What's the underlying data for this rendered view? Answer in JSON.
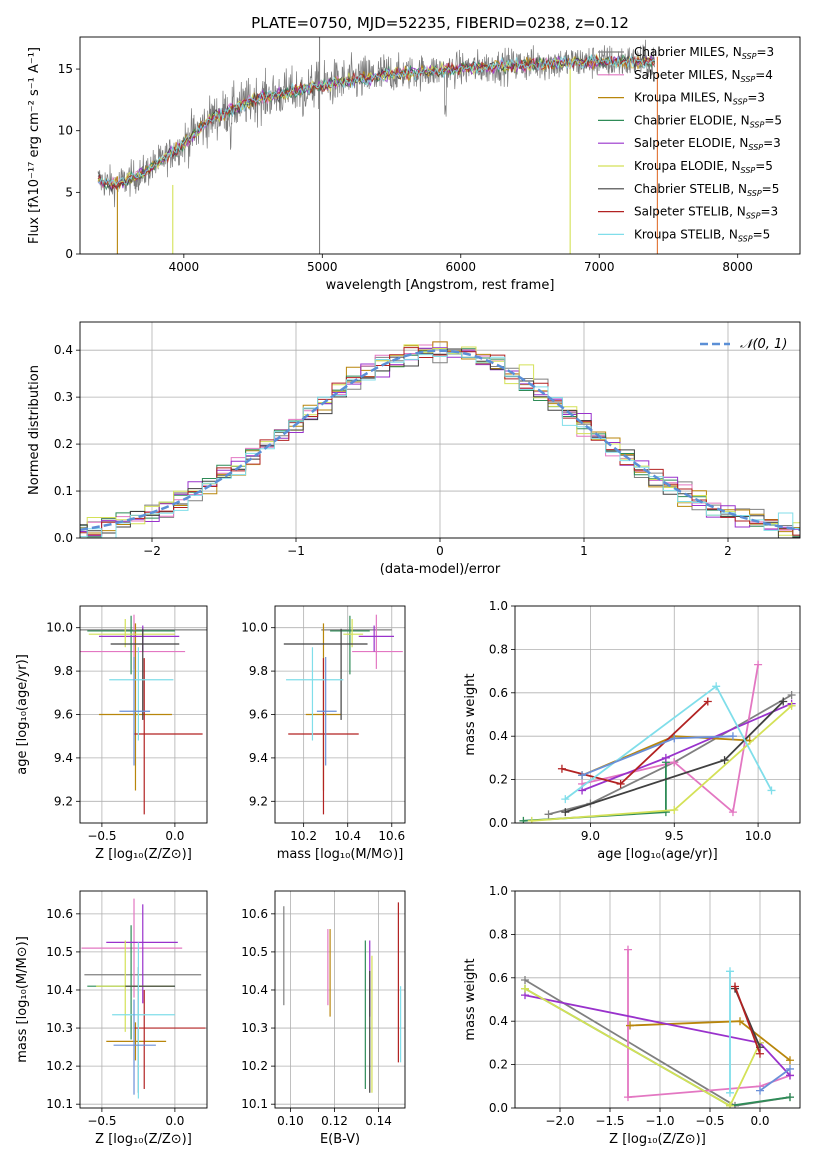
{
  "figure_title": "PLATE=0750, MJD=52235, FIBERID=0238, z=0.12",
  "models": [
    {
      "label": "Chabrier MILES, N",
      "sub": "SSP",
      "tail": "=3",
      "color": "#808080"
    },
    {
      "label": "Salpeter MILES, N",
      "sub": "SSP",
      "tail": "=4",
      "color": "#e377c2"
    },
    {
      "label": "Kroupa MILES, N",
      "sub": "SSP",
      "tail": "=3",
      "color": "#b8860b"
    },
    {
      "label": "Chabrier ELODIE, N",
      "sub": "SSP",
      "tail": "=5",
      "color": "#2e8b57"
    },
    {
      "label": "Salpeter ELODIE, N",
      "sub": "SSP",
      "tail": "=3",
      "color": "#9932cc"
    },
    {
      "label": "Kroupa ELODIE, N",
      "sub": "SSP",
      "tail": "=5",
      "color": "#d4e157"
    },
    {
      "label": "Chabrier STELIB, N",
      "sub": "SSP",
      "tail": "=5",
      "color": "#404040"
    },
    {
      "label": "Salpeter STELIB, N",
      "sub": "SSP",
      "tail": "=3",
      "color": "#b22222"
    },
    {
      "label": "Kroupa STELIB, N",
      "sub": "SSP",
      "tail": "=5",
      "color": "#80deea"
    }
  ],
  "chart_data": [
    {
      "id": "spectrum",
      "type": "line",
      "xlabel": "wavelength [Angstrom, rest frame]",
      "ylabel": "Flux [fλ10⁻¹⁷ erg cm⁻² s⁻¹ A⁻¹]",
      "xlim": [
        3250,
        8450
      ],
      "ylim": [
        0,
        17.6
      ],
      "xticks": [
        4000,
        5000,
        6000,
        7000,
        8000
      ],
      "yticks": [
        0,
        5,
        10,
        15
      ],
      "grid": false,
      "legend": "top-right",
      "continuum": {
        "x": [
          3380,
          3500,
          3700,
          3950,
          4200,
          4500,
          5000,
          5500,
          6000,
          6500,
          7000,
          7400
        ],
        "y": [
          6.0,
          5.6,
          6.5,
          8.5,
          11.0,
          12.5,
          13.7,
          14.6,
          15.0,
          15.4,
          15.6,
          15.6
        ]
      }
    },
    {
      "id": "residuals",
      "type": "step",
      "xlabel": "(data-model)/error",
      "ylabel": "Normed distribution",
      "xlim": [
        -2.5,
        2.5
      ],
      "ylim": [
        0,
        0.46
      ],
      "xticks": [
        -2,
        -1,
        0,
        1,
        2
      ],
      "yticks": [
        0.0,
        0.1,
        0.2,
        0.3,
        0.4
      ],
      "grid": true,
      "legend": "top-right",
      "reference_label": "𝒩(0, 1)"
    },
    {
      "id": "age_Z",
      "type": "errorbar",
      "xlabel": "Z [log₁₀(Z/Z⊙)]",
      "ylabel": "age  [log₁₀(age/yr)]",
      "xlim": [
        -0.65,
        0.22
      ],
      "ylim": [
        9.1,
        10.1
      ],
      "xticks": [
        -0.5,
        0.0
      ],
      "yticks": [
        9.2,
        9.4,
        9.6,
        9.8,
        10.0
      ],
      "grid": true,
      "points": [
        {
          "x": -0.22,
          "xerr": [
            0.45,
            0.45
          ],
          "y": 9.99,
          "yerr": [
            0.0,
            0.0
          ]
        },
        {
          "x": -0.28,
          "xerr": [
            0.38,
            0.35
          ],
          "y": 9.89,
          "yerr": [
            0.08,
            0.17
          ]
        },
        {
          "x": -0.27,
          "xerr": [
            0.25,
            0.25
          ],
          "y": 9.6,
          "yerr": [
            0.35,
            0.42
          ]
        },
        {
          "x": -0.3,
          "xerr": [
            0.3,
            0.3
          ],
          "y": 9.985,
          "yerr": [
            0.2,
            0.07
          ]
        },
        {
          "x": -0.22,
          "xerr": [
            0.3,
            0.25
          ],
          "y": 9.96,
          "yerr": [
            0.07,
            0.05
          ]
        },
        {
          "x": -0.34,
          "xerr": [
            0.25,
            0.34
          ],
          "y": 9.97,
          "yerr": [
            0.06,
            0.07
          ]
        },
        {
          "x": -0.22,
          "xerr": [
            0.22,
            0.25
          ],
          "y": 9.925,
          "yerr": [
            0.35,
            0.07
          ]
        },
        {
          "x": -0.21,
          "xerr": [
            0.07,
            0.4
          ],
          "y": 9.51,
          "yerr": [
            0.37,
            0.35
          ]
        },
        {
          "x": -0.25,
          "xerr": [
            0.2,
            0.24
          ],
          "y": 9.76,
          "yerr": [
            0.28,
            0.15
          ]
        },
        {
          "x": -0.28,
          "xerr": [
            0.1,
            0.11
          ],
          "y": 9.615,
          "yerr": [
            0.25,
            0.25
          ]
        }
      ]
    },
    {
      "id": "age_mass",
      "type": "errorbar",
      "xlabel": "mass [log₁₀(M/M⊙)]",
      "ylabel": "",
      "xlim": [
        10.07,
        10.66
      ],
      "ylim": [
        9.1,
        10.1
      ],
      "xticks": [
        10.2,
        10.4,
        10.6
      ],
      "yticks": [
        9.2,
        9.4,
        9.6,
        9.8,
        10.0
      ],
      "grid": true,
      "points": [
        {
          "x": 10.44,
          "xerr": [
            0.16,
            0.16
          ],
          "y": 9.99,
          "yerr": [
            0.0,
            0.0
          ]
        },
        {
          "x": 10.53,
          "xerr": [
            0.11,
            0.12
          ],
          "y": 9.89,
          "yerr": [
            0.08,
            0.17
          ]
        },
        {
          "x": 10.29,
          "xerr": [
            0.08,
            0.08
          ],
          "y": 9.6,
          "yerr": [
            0.35,
            0.42
          ]
        },
        {
          "x": 10.41,
          "xerr": [
            0.09,
            0.09
          ],
          "y": 9.985,
          "yerr": [
            0.2,
            0.07
          ]
        },
        {
          "x": 10.52,
          "xerr": [
            0.07,
            0.09
          ],
          "y": 9.96,
          "yerr": [
            0.07,
            0.05
          ]
        },
        {
          "x": 10.42,
          "xerr": [
            0.04,
            0.05
          ],
          "y": 9.97,
          "yerr": [
            0.06,
            0.07
          ]
        },
        {
          "x": 10.37,
          "xerr": [
            0.26,
            0.12
          ],
          "y": 9.925,
          "yerr": [
            0.35,
            0.07
          ]
        },
        {
          "x": 10.29,
          "xerr": [
            0.16,
            0.16
          ],
          "y": 9.51,
          "yerr": [
            0.37,
            0.35
          ]
        },
        {
          "x": 10.24,
          "xerr": [
            0.12,
            0.14
          ],
          "y": 9.76,
          "yerr": [
            0.28,
            0.15
          ]
        },
        {
          "x": 10.3,
          "xerr": [
            0.04,
            0.05
          ],
          "y": 9.615,
          "yerr": [
            0.25,
            0.25
          ]
        }
      ]
    },
    {
      "id": "weight_age",
      "type": "line",
      "xlabel": "age  [log₁₀(age/yr)]",
      "ylabel": "mass weight",
      "xlim": [
        8.55,
        10.25
      ],
      "ylim": [
        0,
        1.0
      ],
      "xticks": [
        9.0,
        9.5,
        10.0
      ],
      "yticks": [
        0.0,
        0.2,
        0.4,
        0.6,
        0.8,
        1.0
      ],
      "grid": true,
      "series": [
        {
          "x": [
            8.75,
            9.0,
            9.5,
            10.2
          ],
          "y": [
            0.04,
            0.09,
            0.28,
            0.59
          ]
        },
        {
          "x": [
            8.95,
            9.5,
            9.85,
            10.0
          ],
          "y": [
            0.18,
            0.28,
            0.05,
            0.73
          ]
        },
        {
          "x": [
            8.95,
            9.5,
            9.95
          ],
          "y": [
            0.22,
            0.4,
            0.38
          ]
        },
        {
          "x": [
            8.6,
            9.45,
            9.45
          ],
          "y": [
            0.01,
            0.05,
            0.28
          ]
        },
        {
          "x": [
            8.95,
            9.45,
            10.2
          ],
          "y": [
            0.15,
            0.3,
            0.55
          ]
        },
        {
          "x": [
            8.65,
            9.5,
            10.2
          ],
          "y": [
            0.01,
            0.06,
            0.54
          ]
        },
        {
          "x": [
            8.85,
            9.8,
            10.15
          ],
          "y": [
            0.05,
            0.29,
            0.56
          ]
        },
        {
          "x": [
            8.83,
            9.18,
            9.7
          ],
          "y": [
            0.25,
            0.18,
            0.56
          ]
        },
        {
          "x": [
            8.85,
            9.75,
            10.08
          ],
          "y": [
            0.11,
            0.63,
            0.15
          ]
        },
        {
          "x": [
            8.95,
            9.5,
            9.85
          ],
          "y": [
            0.22,
            0.39,
            0.4
          ]
        }
      ]
    },
    {
      "id": "mass_Z",
      "type": "errorbar",
      "xlabel": "Z [log₁₀(Z/Z⊙)]",
      "ylabel": "mass [log₁₀(M/M⊙)]",
      "xlim": [
        -0.65,
        0.22
      ],
      "ylim": [
        10.09,
        10.66
      ],
      "xticks": [
        -0.5,
        0.0
      ],
      "yticks": [
        10.1,
        10.2,
        10.3,
        10.4,
        10.5,
        10.6
      ],
      "grid": true,
      "points": [
        {
          "x": -0.22,
          "xerr": [
            0.4,
            0.4
          ],
          "y": 10.44,
          "yerr": [
            0.0,
            0.0
          ]
        },
        {
          "x": -0.28,
          "xerr": [
            0.36,
            0.33
          ],
          "y": 10.51,
          "yerr": [
            0.13,
            0.13
          ]
        },
        {
          "x": -0.27,
          "xerr": [
            0.2,
            0.21
          ],
          "y": 10.265,
          "yerr": [
            0.05,
            0.05
          ]
        },
        {
          "x": -0.3,
          "xerr": [
            0.3,
            0.3
          ],
          "y": 10.41,
          "yerr": [
            0.14,
            0.16
          ]
        },
        {
          "x": -0.22,
          "xerr": [
            0.25,
            0.24
          ],
          "y": 10.525,
          "yerr": [
            0.16,
            0.1
          ]
        },
        {
          "x": -0.34,
          "xerr": [
            0.2,
            0.33
          ],
          "y": 10.41,
          "yerr": [
            0.12,
            0.12
          ]
        },
        {
          "x": -0.25,
          "xerr": [
            0.09,
            0.25
          ],
          "y": 10.41,
          "yerr": [
            0.28,
            0.05
          ]
        },
        {
          "x": -0.21,
          "xerr": [
            0.07,
            0.42
          ],
          "y": 10.3,
          "yerr": [
            0.16,
            0.1
          ]
        },
        {
          "x": -0.25,
          "xerr": [
            0.18,
            0.25
          ],
          "y": 10.335,
          "yerr": [
            0.22,
            0.19
          ]
        },
        {
          "x": -0.28,
          "xerr": [
            0.14,
            0.15
          ],
          "y": 10.255,
          "yerr": [
            0.13,
            0.12
          ]
        }
      ]
    },
    {
      "id": "mass_EBV",
      "type": "errorbar",
      "xlabel": "E(B-V)",
      "ylabel": "",
      "xlim": [
        0.093,
        0.152
      ],
      "ylim": [
        10.09,
        10.66
      ],
      "xticks": [
        0.1,
        0.12,
        0.14
      ],
      "yticks": [
        10.1,
        10.2,
        10.3,
        10.4,
        10.5,
        10.6
      ],
      "grid": true,
      "points": [
        {
          "x": 0.097,
          "y": 10.49,
          "yerr": [
            0.13,
            0.13
          ]
        },
        {
          "x": 0.117,
          "y": 10.47,
          "yerr": [
            0.11,
            0.09
          ]
        },
        {
          "x": 0.118,
          "y": 10.46,
          "yerr": [
            0.13,
            0.1
          ]
        },
        {
          "x": 0.134,
          "y": 10.34,
          "yerr": [
            0.2,
            0.19
          ]
        },
        {
          "x": 0.136,
          "y": 10.43,
          "yerr": [
            0.1,
            0.1
          ]
        },
        {
          "x": 0.137,
          "y": 10.31,
          "yerr": [
            0.18,
            0.18
          ]
        },
        {
          "x": 0.136,
          "y": 10.29,
          "yerr": [
            0.16,
            0.16
          ]
        },
        {
          "x": 0.149,
          "y": 10.42,
          "yerr": [
            0.21,
            0.21
          ]
        },
        {
          "x": 0.15,
          "y": 10.31,
          "yerr": [
            0.1,
            0.1
          ]
        }
      ]
    },
    {
      "id": "weight_Z",
      "type": "line",
      "xlabel": "Z [log₁₀(Z/Z⊙)]",
      "ylabel": "mass weight",
      "xlim": [
        -2.45,
        0.4
      ],
      "ylim": [
        0,
        1.0
      ],
      "xticks": [
        -2.0,
        -1.5,
        -1.0,
        -0.5,
        0.0
      ],
      "yticks": [
        0.0,
        0.2,
        0.4,
        0.6,
        0.8,
        1.0
      ],
      "grid": true,
      "series": [
        {
          "x": [
            -2.35,
            -0.25,
            0.3
          ],
          "y": [
            0.59,
            0.01,
            0.05
          ]
        },
        {
          "x": [
            -1.32,
            -1.32,
            0.0,
            0.3
          ],
          "y": [
            0.73,
            0.05,
            0.1,
            0.15
          ]
        },
        {
          "x": [
            -1.3,
            -0.2,
            0.3
          ],
          "y": [
            0.38,
            0.4,
            0.22
          ]
        },
        {
          "x": [
            -2.35,
            -0.3,
            0.3
          ],
          "y": [
            0.55,
            0.01,
            0.05
          ]
        },
        {
          "x": [
            -2.35,
            0.0,
            0.3
          ],
          "y": [
            0.52,
            0.3,
            0.15
          ]
        },
        {
          "x": [
            -2.35,
            -0.3,
            0.0
          ],
          "y": [
            0.55,
            0.01,
            0.3
          ]
        },
        {
          "x": [
            -0.25,
            0.0
          ],
          "y": [
            0.55,
            0.28
          ]
        },
        {
          "x": [
            -0.25,
            0.0
          ],
          "y": [
            0.56,
            0.25
          ]
        },
        {
          "x": [
            -0.3,
            -0.3
          ],
          "y": [
            0.63,
            0.07
          ]
        },
        {
          "x": [
            0.0,
            0.3
          ],
          "y": [
            0.08,
            0.18
          ]
        }
      ]
    }
  ]
}
